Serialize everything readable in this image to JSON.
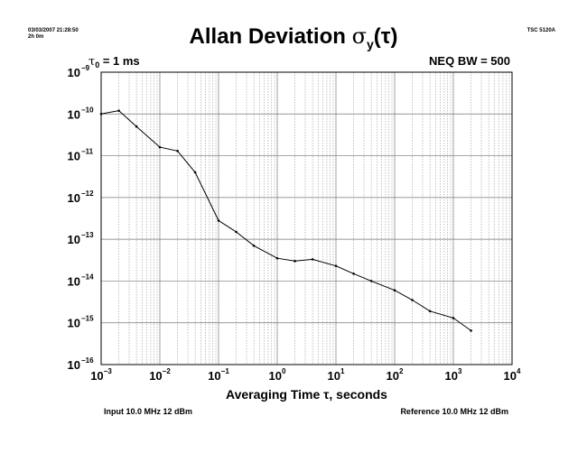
{
  "header": {
    "timestamp": "03/03/2007 21:28:50",
    "duration": "2h 0m",
    "instrument": "TSC 5120A",
    "title_main": "Allan Deviation ",
    "title_sigma": "σ",
    "title_sub": "y",
    "title_arg": "(τ)",
    "tau0_symbol": "τ",
    "tau0_sub": "0",
    "tau0_value": " = 1 ms",
    "neq_bw": "NEQ BW = 500"
  },
  "footer": {
    "input": "Input 10.0 MHz 12 dBm",
    "reference": "Reference 10.0 MHz 12 dBm"
  },
  "chart_data": {
    "type": "line",
    "title": "Allan Deviation σy(τ)",
    "xlabel": "Averaging Time τ, seconds",
    "ylabel": "",
    "xscale": "log",
    "yscale": "log",
    "xlim": [
      0.001,
      10000
    ],
    "ylim": [
      1e-16,
      1e-09
    ],
    "grid": true,
    "x_tick_labels": [
      {
        "base": "10",
        "exp": "−3"
      },
      {
        "base": "10",
        "exp": "−2"
      },
      {
        "base": "10",
        "exp": "−1"
      },
      {
        "base": "10",
        "exp": "0"
      },
      {
        "base": "10",
        "exp": "1"
      },
      {
        "base": "10",
        "exp": "2"
      },
      {
        "base": "10",
        "exp": "3"
      },
      {
        "base": "10",
        "exp": "4"
      }
    ],
    "y_tick_labels": [
      {
        "base": "10",
        "exp": "−9"
      },
      {
        "base": "10",
        "exp": "−10"
      },
      {
        "base": "10",
        "exp": "−11"
      },
      {
        "base": "10",
        "exp": "−12"
      },
      {
        "base": "10",
        "exp": "−13"
      },
      {
        "base": "10",
        "exp": "−14"
      },
      {
        "base": "10",
        "exp": "−15"
      },
      {
        "base": "10",
        "exp": "−16"
      }
    ],
    "series": [
      {
        "x": [
          0.001,
          0.002,
          0.004,
          0.01,
          0.02,
          0.04,
          0.1,
          0.2,
          0.4,
          1,
          2,
          4,
          10,
          20,
          40,
          100,
          200,
          400,
          1000,
          2000
        ],
        "y": [
          1e-10,
          1.2e-10,
          5e-11,
          1.6e-11,
          1.3e-11,
          4e-12,
          2.8e-13,
          1.5e-13,
          7e-14,
          3.5e-14,
          3e-14,
          3.3e-14,
          2.3e-14,
          1.5e-14,
          1e-14,
          6e-15,
          3.5e-15,
          1.9e-15,
          1.3e-15,
          6.5e-16
        ]
      }
    ]
  }
}
